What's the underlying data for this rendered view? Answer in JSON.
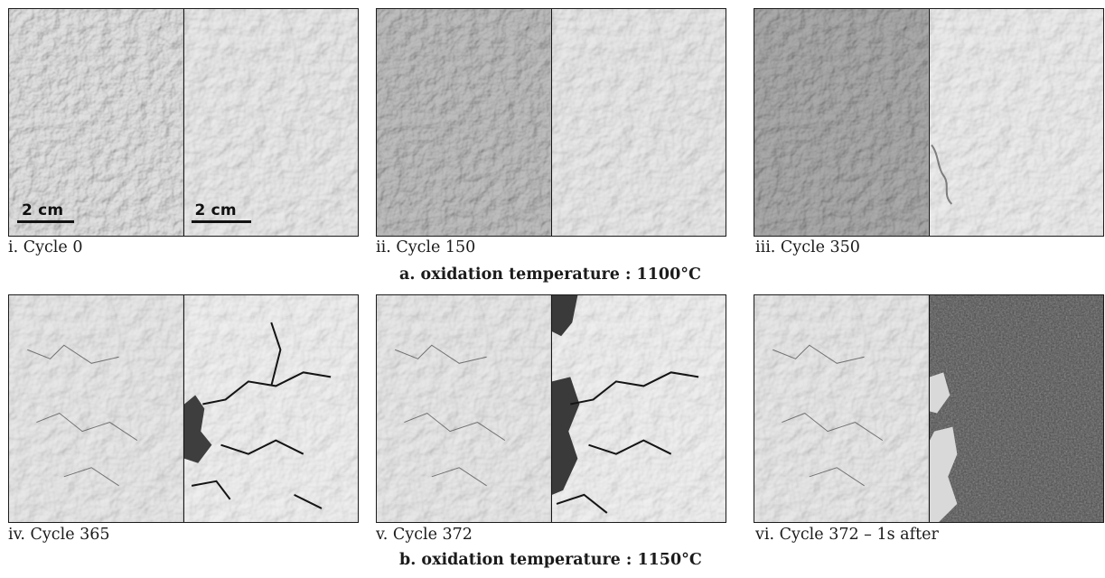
{
  "figure": {
    "scale_bar_label": "2 cm",
    "panels": [
      {
        "caption": "i. Cycle 0",
        "state": "intact",
        "surface_tone": "light-gray"
      },
      {
        "caption": "ii. Cycle 150",
        "state": "intact",
        "surface_tone": "mid-gray"
      },
      {
        "caption": "iii. Cycle 350",
        "state": "intact",
        "surface_tone": "dark-gray-left"
      },
      {
        "caption": "iv. Cycle 365",
        "state": "cracked",
        "surface_tone": "light"
      },
      {
        "caption": "v. Cycle 372",
        "state": "cracked-spalled",
        "surface_tone": "light"
      },
      {
        "caption": "vi. Cycle 372 – 1s after",
        "state": "spalled",
        "surface_tone": "dark-right"
      }
    ],
    "sections": [
      {
        "title": "a. oxidation temperature : 1100°C"
      },
      {
        "title": "b. oxidation temperature : 1150°C"
      }
    ]
  },
  "colors": {
    "frame": "#1c1c1c",
    "crack": "#141414",
    "spall": "#3e3e3e",
    "background": "#ffffff"
  }
}
